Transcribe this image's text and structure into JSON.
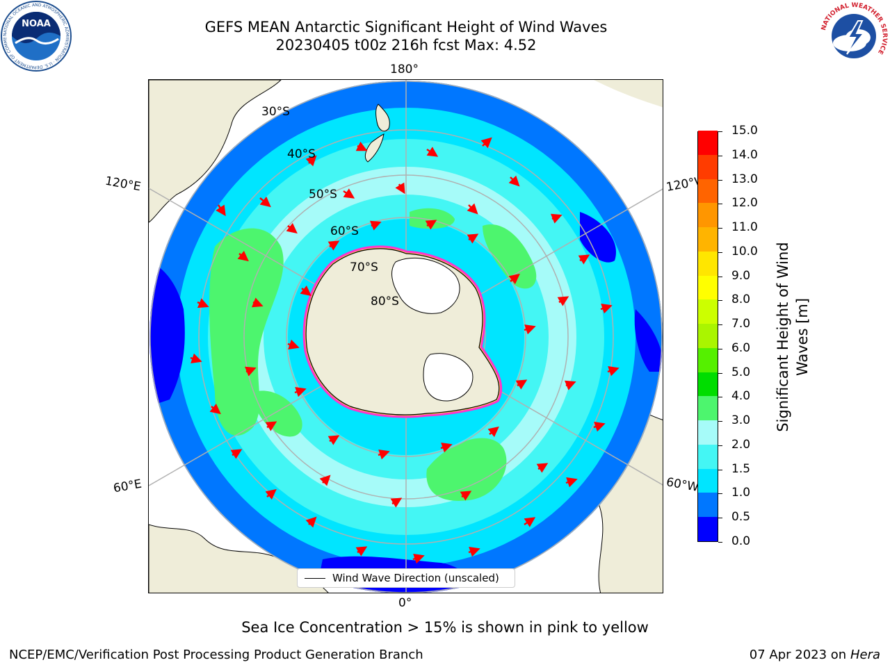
{
  "title": {
    "line1": "GEFS MEAN Antarctic Significant Height of Wind Waves",
    "line2": "20230405 t00z 216h fcst   Max: 4.52"
  },
  "logos": {
    "noaa": "NOAA",
    "noaa_ring": "NATIONAL OCEANIC AND ATMOSPHERIC ADMINISTRATION · U.S. DEPARTMENT OF COMMERCE",
    "nws_ring": "NATIONAL WEATHER SERVICE"
  },
  "map": {
    "projection": "south-polar-stereographic",
    "longitude_labels": {
      "top": "180°",
      "bottom": "0°",
      "upper_left": "120°E",
      "upper_right": "120°W",
      "lower_left": "60°E",
      "lower_right": "60°W"
    },
    "latitude_labels": [
      "30°S",
      "40°S",
      "50°S",
      "60°S",
      "70°S",
      "80°S"
    ],
    "colors": {
      "land": "#efedd9",
      "antarctic_ice_shelf": "#ffffff",
      "sea_ice_edge": "#ff33cc",
      "sea_ice_edge_inner": "#ffd24d",
      "grid": "#b0b0b0",
      "arrow": "#ff0000"
    }
  },
  "colorbar": {
    "title_line1": "Significant Height of Wind",
    "title_line2": "Waves [m]",
    "levels": [
      "0.0",
      "0.5",
      "1.0",
      "1.5",
      "2.0",
      "3.0",
      "4.0",
      "5.0",
      "6.0",
      "7.0",
      "8.0",
      "9.0",
      "10.0",
      "11.0",
      "12.0",
      "13.0",
      "14.0",
      "15.0"
    ],
    "colors": [
      "#0000ff",
      "#0077ff",
      "#00e5ff",
      "#44f6f4",
      "#a6fbf9",
      "#4df56e",
      "#00dd00",
      "#55f000",
      "#aaf500",
      "#ccff00",
      "#ffff00",
      "#ffe600",
      "#ffb400",
      "#ff9600",
      "#ff6400",
      "#ff3c00",
      "#ff0000"
    ]
  },
  "legend": {
    "label": "Wind Wave Direction (unscaled)"
  },
  "footnote": "Sea Ice Concentration > 15% is shown in pink to yellow",
  "credits": {
    "left": "NCEP/EMC/Verification Post Processing Product Generation Branch",
    "right_date": "07 Apr 2023 on ",
    "right_machine": "Hera"
  }
}
